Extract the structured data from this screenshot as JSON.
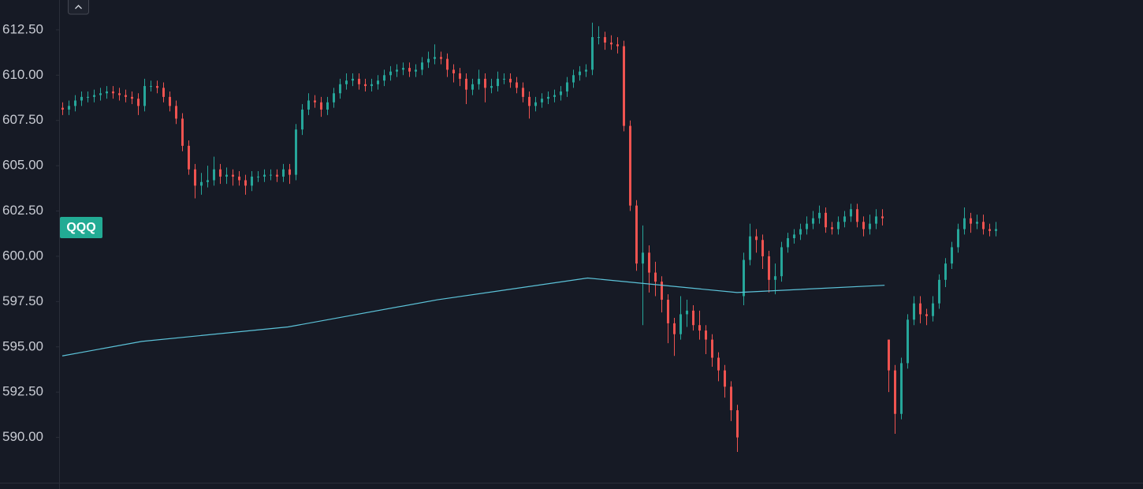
{
  "chart_data": {
    "type": "candlestick",
    "label": "QQQ",
    "up_color": "#26a69a",
    "down_color": "#ef5350",
    "grid": false,
    "ylim": [
      587.5,
      614.15
    ],
    "yticks": [
      {
        "value": 590,
        "label": "590.00"
      },
      {
        "value": 592.5,
        "label": "592.50"
      },
      {
        "value": 595,
        "label": "595.00"
      },
      {
        "value": 597.5,
        "label": "597.50"
      },
      {
        "value": 600,
        "label": "600.00"
      },
      {
        "value": 602.5,
        "label": "602.50"
      },
      {
        "value": 605,
        "label": "605.00"
      },
      {
        "value": 607.5,
        "label": "607.50"
      },
      {
        "value": 610,
        "label": "610.00"
      },
      {
        "value": 612.5,
        "label": "612.50"
      }
    ],
    "open": [
      608.2,
      608.1,
      608.3,
      608.6,
      608.8,
      608.8,
      608.9,
      609.0,
      609.1,
      609.0,
      608.9,
      608.8,
      608.7,
      608.3,
      609.4,
      609.4,
      609.3,
      608.8,
      608.3,
      607.6,
      606.1,
      604.8,
      603.9,
      604.1,
      604.2,
      604.8,
      604.4,
      604.5,
      604.4,
      604.2,
      603.9,
      604.4,
      604.4,
      604.5,
      604.5,
      604.4,
      604.8,
      604.5,
      607.0,
      608.1,
      608.6,
      608.5,
      608.1,
      608.5,
      609.0,
      609.5,
      609.7,
      609.8,
      609.5,
      609.4,
      609.5,
      609.7,
      610.0,
      610.2,
      610.3,
      610.4,
      610.2,
      610.3,
      610.7,
      610.9,
      611.0,
      610.9,
      610.3,
      610.1,
      609.8,
      609.2,
      609.5,
      609.8,
      609.3,
      609.4,
      609.8,
      609.8,
      609.6,
      609.3,
      608.8,
      608.3,
      608.5,
      608.7,
      608.8,
      608.9,
      609.1,
      609.6,
      610.0,
      610.2,
      610.3,
      612.1,
      612.1,
      611.8,
      611.7,
      611.6,
      607.2,
      602.8,
      599.6,
      600.2,
      599.1,
      598.6,
      597.6,
      596.3,
      595.7,
      596.8,
      597.0,
      596.2,
      595.9,
      595.4,
      594.4,
      593.7,
      592.8,
      591.5,
      597.8,
      599.8,
      601.1,
      600.9,
      600.0,
      598.7,
      598.9,
      600.5,
      601.0,
      601.2,
      601.5,
      601.8,
      602.1,
      602.4,
      601.6,
      601.5,
      601.9,
      602.2,
      602.6,
      601.9,
      601.5,
      601.8,
      602.2,
      595.4,
      593.7,
      591.3,
      594.1,
      596.5,
      597.4,
      596.8,
      596.7,
      597.4,
      598.7,
      599.6,
      600.5,
      601.5,
      602.1,
      601.8,
      601.9,
      601.5,
      601.4
    ],
    "high": [
      608.5,
      608.6,
      608.9,
      609.1,
      609.1,
      609.2,
      609.3,
      609.4,
      609.4,
      609.3,
      609.2,
      609.1,
      609.0,
      609.8,
      609.7,
      609.7,
      609.6,
      609.1,
      608.6,
      607.9,
      606.4,
      605.1,
      604.6,
      605.0,
      605.5,
      605.1,
      604.9,
      604.8,
      604.7,
      604.5,
      604.7,
      604.7,
      604.8,
      604.8,
      604.8,
      605.1,
      605.1,
      607.3,
      608.4,
      609.0,
      608.9,
      608.8,
      608.8,
      609.3,
      609.8,
      610.1,
      610.1,
      610.1,
      609.8,
      609.8,
      610.0,
      610.3,
      610.5,
      610.6,
      610.7,
      610.7,
      610.6,
      611.0,
      611.3,
      611.7,
      611.3,
      611.2,
      610.6,
      610.4,
      610.1,
      609.8,
      610.3,
      610.1,
      609.8,
      610.2,
      610.1,
      610.1,
      609.9,
      609.6,
      609.1,
      608.8,
      609.0,
      609.1,
      609.2,
      609.4,
      609.9,
      610.3,
      610.5,
      610.6,
      612.9,
      612.7,
      612.4,
      612.2,
      612.1,
      611.9,
      607.5,
      603.1,
      601.7,
      600.6,
      599.7,
      598.9,
      597.9,
      596.6,
      597.8,
      597.6,
      597.3,
      597.0,
      596.2,
      595.7,
      594.7,
      594.0,
      593.1,
      591.8,
      600.2,
      601.8,
      601.5,
      601.2,
      600.3,
      599.6,
      600.8,
      601.3,
      601.5,
      601.8,
      602.2,
      602.5,
      602.8,
      602.7,
      601.9,
      602.2,
      602.5,
      602.9,
      602.9,
      602.2,
      602.3,
      602.6,
      602.6,
      595.4,
      594.0,
      594.4,
      596.8,
      597.8,
      597.8,
      597.1,
      597.8,
      599.0,
      599.9,
      600.8,
      601.8,
      602.7,
      602.4,
      602.3,
      602.3,
      601.8,
      601.9
    ],
    "low": [
      607.8,
      607.8,
      608.0,
      608.3,
      608.5,
      608.5,
      608.6,
      608.7,
      608.7,
      608.6,
      608.5,
      608.4,
      607.8,
      608.0,
      609.1,
      609.0,
      608.5,
      608.0,
      607.3,
      605.8,
      604.5,
      603.2,
      603.4,
      603.8,
      603.9,
      604.0,
      604.0,
      603.9,
      603.9,
      603.4,
      603.6,
      604.1,
      604.1,
      604.2,
      604.1,
      604.1,
      604.0,
      604.2,
      606.7,
      607.8,
      608.2,
      607.7,
      607.8,
      608.2,
      608.7,
      609.2,
      609.4,
      609.2,
      609.1,
      609.1,
      609.2,
      609.4,
      609.7,
      609.9,
      610.0,
      609.9,
      609.9,
      610.0,
      610.4,
      610.6,
      610.6,
      609.9,
      609.6,
      609.4,
      608.4,
      608.9,
      609.2,
      608.5,
      609.0,
      609.1,
      609.5,
      609.3,
      609.0,
      608.5,
      607.6,
      608.0,
      608.2,
      608.4,
      608.5,
      608.6,
      608.8,
      609.3,
      609.7,
      609.9,
      610.0,
      611.7,
      611.4,
      611.4,
      611.2,
      606.9,
      602.5,
      599.2,
      596.2,
      598.0,
      597.8,
      596.9,
      595.2,
      594.5,
      595.4,
      596.1,
      595.9,
      595.4,
      594.6,
      593.9,
      593.1,
      592.2,
      590.9,
      589.2,
      597.3,
      599.5,
      600.2,
      599.3,
      598.0,
      597.9,
      598.6,
      600.2,
      600.7,
      600.9,
      601.2,
      601.5,
      601.8,
      601.3,
      601.2,
      601.2,
      601.6,
      601.9,
      601.6,
      601.1,
      601.2,
      601.5,
      601.7,
      592.5,
      590.2,
      591.0,
      593.8,
      596.2,
      596.3,
      596.2,
      596.4,
      597.1,
      598.3,
      599.3,
      600.2,
      601.2,
      601.3,
      601.5,
      601.2,
      601.1,
      601.1
    ],
    "close": [
      608.1,
      608.3,
      608.6,
      608.8,
      608.8,
      608.9,
      609.0,
      609.1,
      609.0,
      608.9,
      608.8,
      608.7,
      608.3,
      609.4,
      609.4,
      609.3,
      608.8,
      608.3,
      607.6,
      606.1,
      604.8,
      603.9,
      604.1,
      604.2,
      604.8,
      604.4,
      604.5,
      604.4,
      604.2,
      603.9,
      604.4,
      604.4,
      604.5,
      604.5,
      604.4,
      604.8,
      604.5,
      607.0,
      608.1,
      608.6,
      608.5,
      608.1,
      608.5,
      609.0,
      609.5,
      609.7,
      609.8,
      609.5,
      609.4,
      609.5,
      609.7,
      610.0,
      610.2,
      610.3,
      610.4,
      610.2,
      610.3,
      610.7,
      610.9,
      611.0,
      610.9,
      610.3,
      610.1,
      609.8,
      609.2,
      609.5,
      609.8,
      609.3,
      609.4,
      609.8,
      609.8,
      609.6,
      609.3,
      608.8,
      608.3,
      608.5,
      608.7,
      608.8,
      608.9,
      609.1,
      609.6,
      610.0,
      610.2,
      610.3,
      612.1,
      612.1,
      611.8,
      611.7,
      611.6,
      607.2,
      602.8,
      599.6,
      600.2,
      599.1,
      598.6,
      597.6,
      596.3,
      595.7,
      596.8,
      597.0,
      596.2,
      595.9,
      595.4,
      594.4,
      593.7,
      592.8,
      591.5,
      590.0,
      599.8,
      601.1,
      600.9,
      600.0,
      598.7,
      598.9,
      600.5,
      601.0,
      601.2,
      601.5,
      601.8,
      602.1,
      602.4,
      601.6,
      601.5,
      601.9,
      602.2,
      602.6,
      601.9,
      601.5,
      601.8,
      602.2,
      602.1,
      593.7,
      591.3,
      594.1,
      596.5,
      597.4,
      596.8,
      596.7,
      597.4,
      598.7,
      599.6,
      600.5,
      601.5,
      602.1,
      601.8,
      601.9,
      601.5,
      601.4,
      601.5
    ],
    "ma": {
      "color": "#5cc3d9",
      "x": [
        0,
        12.6,
        35.8,
        59.5,
        83.3,
        107,
        130.4
      ],
      "values": [
        594.5,
        595.3,
        596.1,
        597.6,
        598.8,
        598.0,
        598.4
      ]
    }
  }
}
